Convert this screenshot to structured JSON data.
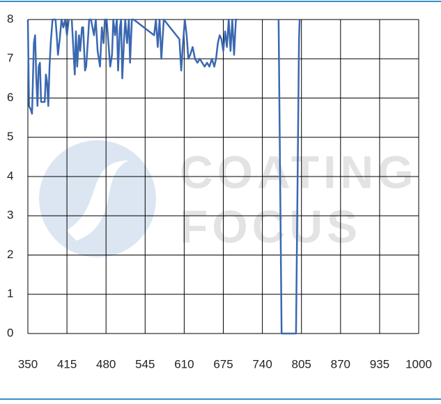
{
  "chart_data": {
    "type": "line",
    "watermark": [
      "COATING",
      "FOCUS"
    ],
    "x": [
      350,
      352,
      355,
      357,
      360,
      362,
      364,
      366,
      368,
      370,
      372,
      375,
      378,
      380,
      382,
      384,
      386,
      388,
      391,
      396,
      398,
      400,
      403,
      406,
      409,
      412,
      415,
      418,
      421,
      423,
      428,
      430,
      432,
      435,
      437,
      440,
      442,
      445,
      447,
      450,
      452,
      455,
      460,
      463,
      466,
      470,
      473,
      476,
      478,
      481,
      485,
      487,
      490,
      492,
      495,
      498,
      500,
      503,
      505,
      507,
      510,
      512,
      515,
      518,
      520,
      523,
      526,
      560,
      563,
      566,
      569,
      572,
      576,
      602,
      605,
      608,
      611,
      614,
      617,
      620,
      624,
      628,
      632,
      636,
      640,
      644,
      648,
      652,
      656,
      660,
      663,
      666,
      669,
      672,
      675,
      678,
      681,
      684,
      687,
      690,
      693,
      696,
      698,
      766,
      767,
      772,
      796,
      801,
      802
    ],
    "series": [
      {
        "color": "#3a68b0",
        "values": [
          8,
          5.8,
          5.7,
          5.6,
          7.4,
          7.6,
          6.5,
          5.8,
          6.8,
          6.9,
          5.9,
          5.9,
          5.9,
          6.6,
          6.4,
          5.8,
          6.8,
          7.4,
          8,
          8,
          7.6,
          7.1,
          7.5,
          8,
          7.8,
          8,
          7.6,
          8,
          null,
          8,
          6.6,
          7.7,
          6.8,
          7.6,
          7.2,
          7.8,
          7.8,
          6.7,
          6.8,
          7.5,
          8,
          8,
          7.6,
          8,
          7.2,
          6.8,
          7.8,
          7.4,
          8,
          8,
          7.2,
          6.8,
          7.1,
          8,
          7.6,
          8,
          6.7,
          7.8,
          8,
          6.5,
          7.5,
          8,
          7.4,
          8,
          6.9,
          8,
          8,
          7.6,
          8,
          7.3,
          8,
          7.0,
          8,
          7.5,
          6.7,
          7.4,
          8,
          7.6,
          7.0,
          7.1,
          7.3,
          7.0,
          6.9,
          7.0,
          6.9,
          6.8,
          6.9,
          6.8,
          7.0,
          6.8,
          7.0,
          7.4,
          7.6,
          7.5,
          7.2,
          7.7,
          7.3,
          8,
          7.2,
          8,
          7.1,
          8,
          8,
          null,
          8,
          0,
          0,
          7.5,
          8
        ]
      }
    ],
    "xlim": [
      350,
      1000
    ],
    "ylim": [
      0,
      8
    ],
    "xticks": [
      350,
      415,
      480,
      545,
      610,
      675,
      740,
      805,
      870,
      935,
      1000
    ],
    "yticks": [
      0,
      1,
      2,
      3,
      4,
      5,
      6,
      7,
      8
    ],
    "grid": true
  }
}
